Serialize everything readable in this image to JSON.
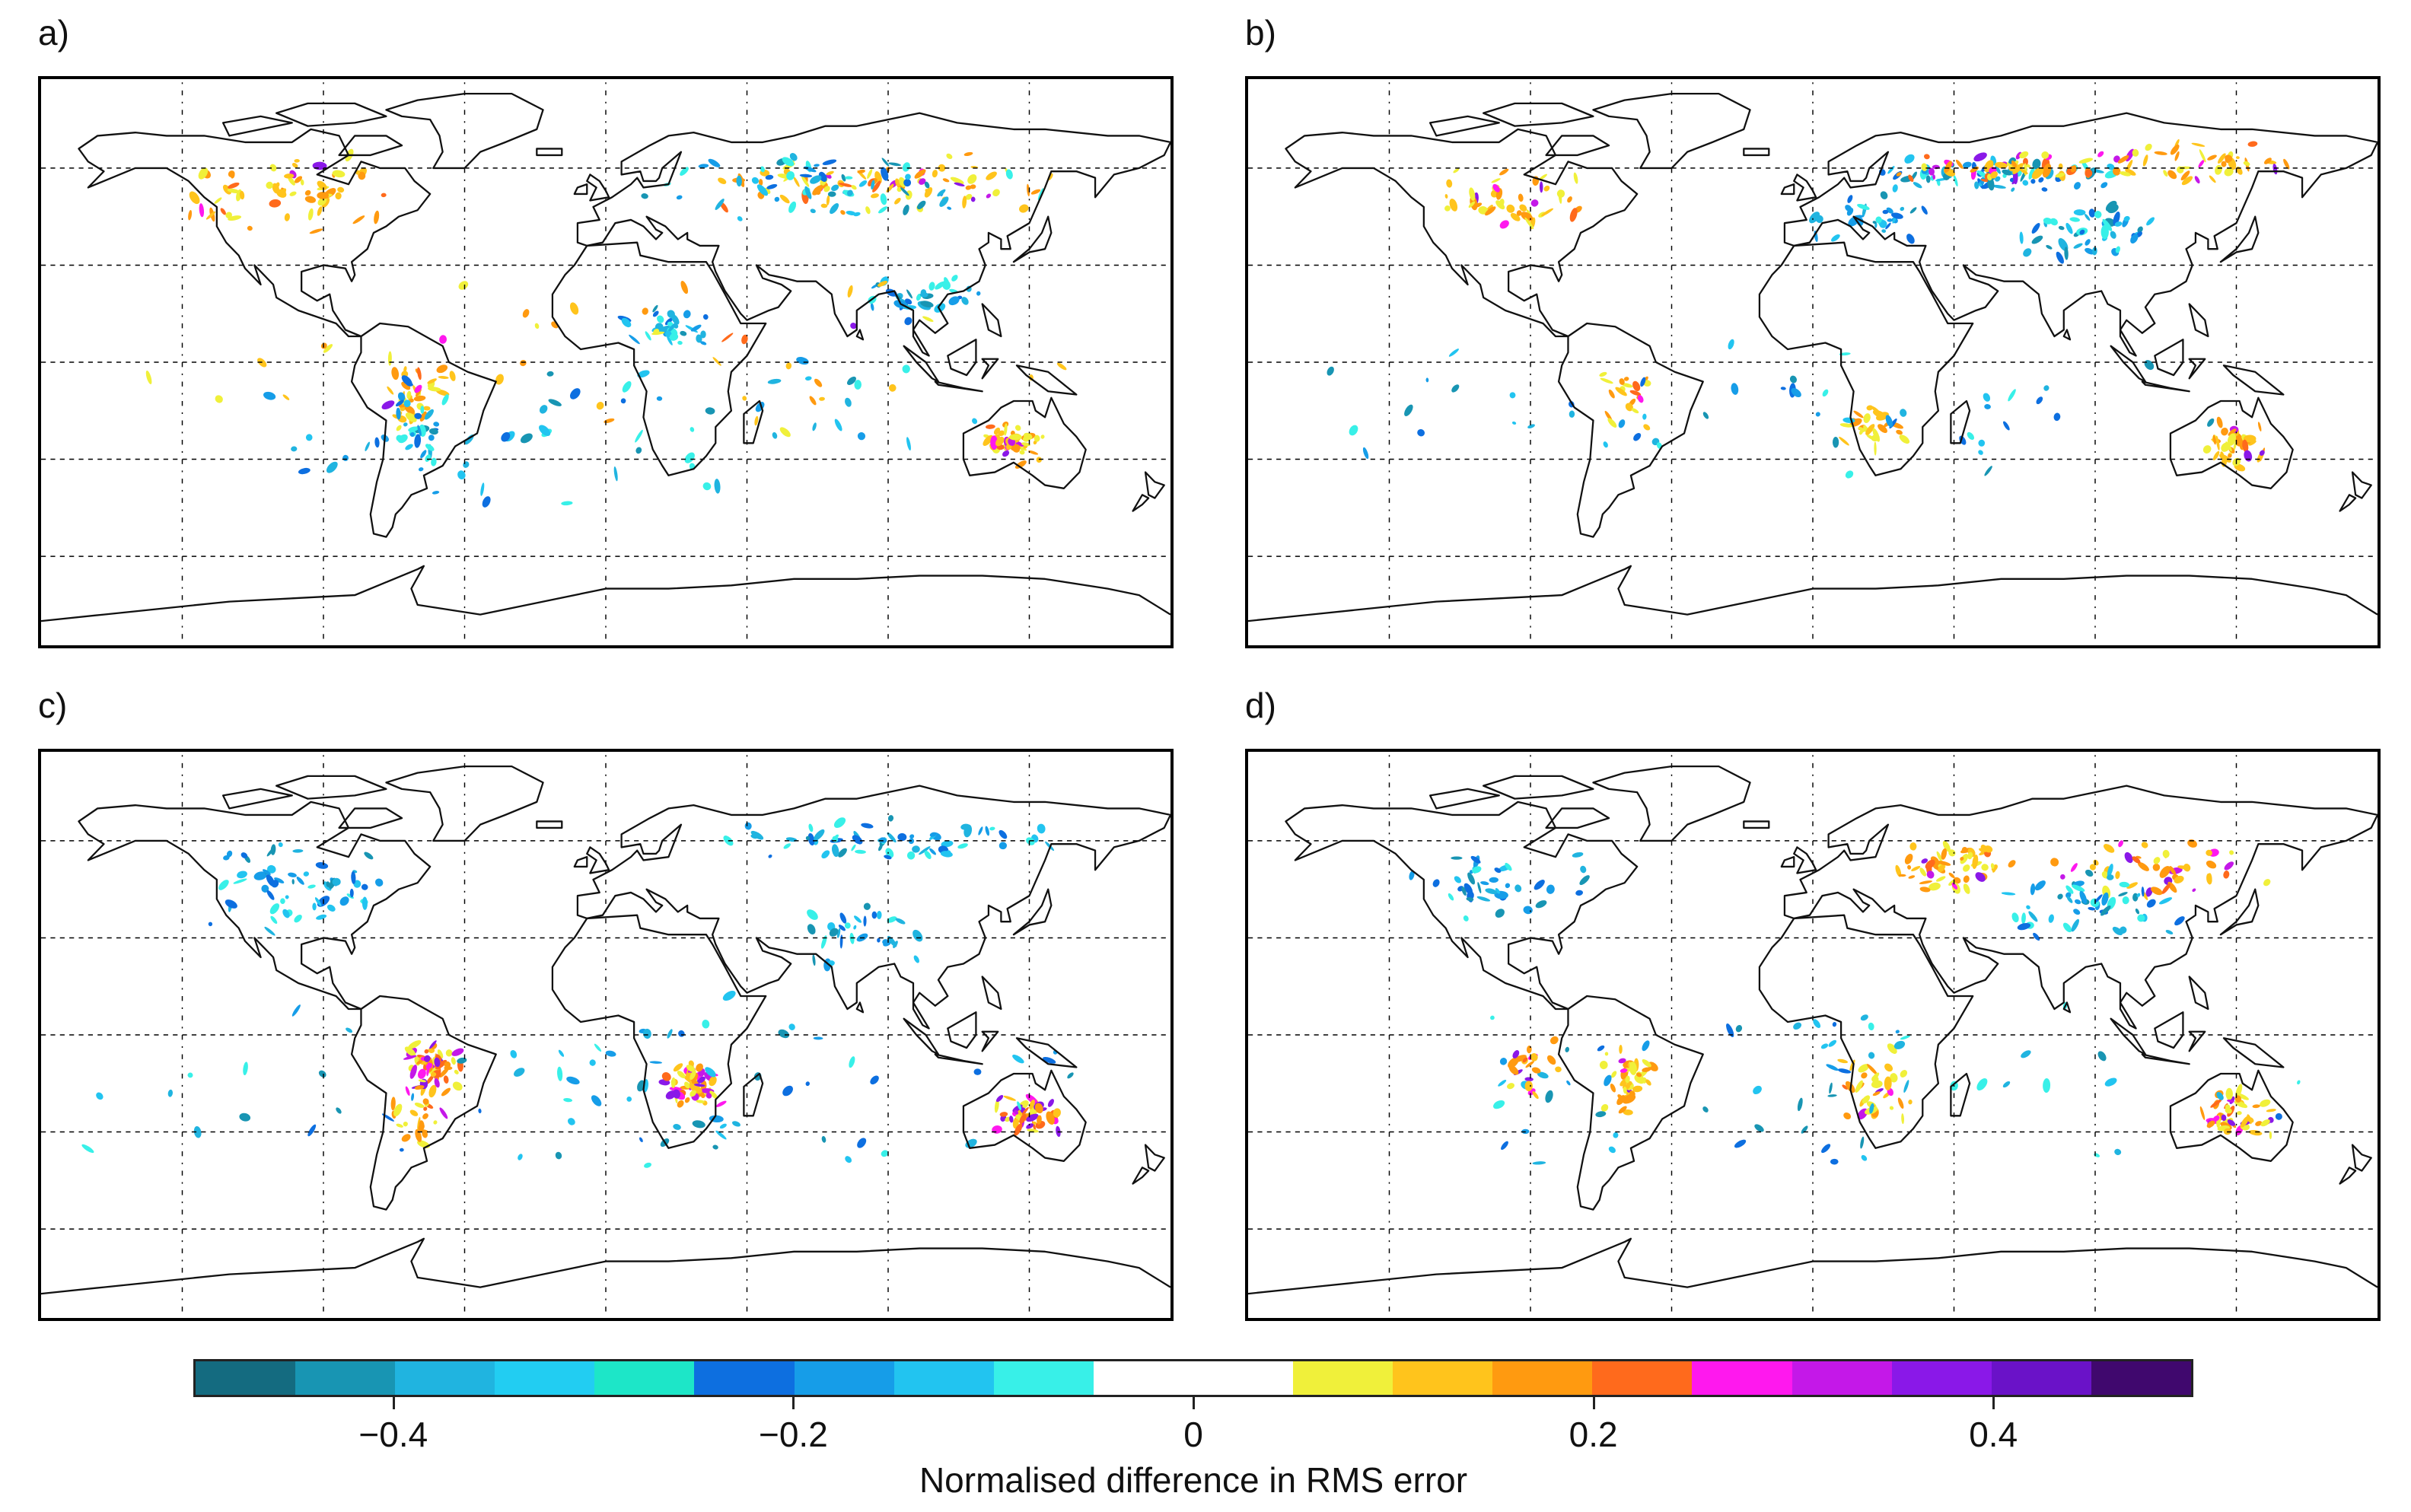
{
  "panels": [
    {
      "label": "a)",
      "pattern": "a"
    },
    {
      "label": "b)",
      "pattern": "b"
    },
    {
      "label": "c)",
      "pattern": "c"
    },
    {
      "label": "d)",
      "pattern": "d"
    }
  ],
  "colorbar": {
    "title": "Normalised difference in RMS error",
    "range": [
      -0.5,
      0.5
    ],
    "ticks": [
      {
        "value": -0.4,
        "label": "−0.4"
      },
      {
        "value": -0.2,
        "label": "−0.2"
      },
      {
        "value": 0,
        "label": "0"
      },
      {
        "value": 0.2,
        "label": "0.2"
      },
      {
        "value": 0.4,
        "label": "0.4"
      }
    ],
    "colors": [
      "#146b80",
      "#1895b3",
      "#20b4e0",
      "#22cdf2",
      "#1de6c8",
      "#0d6fe0",
      "#169de8",
      "#22c4f0",
      "#38f0e8",
      "#ffffff",
      "#ffffff",
      "#f0f03a",
      "#ffc41c",
      "#ff9a10",
      "#ff6a1c",
      "#ff18ee",
      "#c418e8",
      "#8a18e8",
      "#6a12c8",
      "#40086e"
    ]
  }
}
